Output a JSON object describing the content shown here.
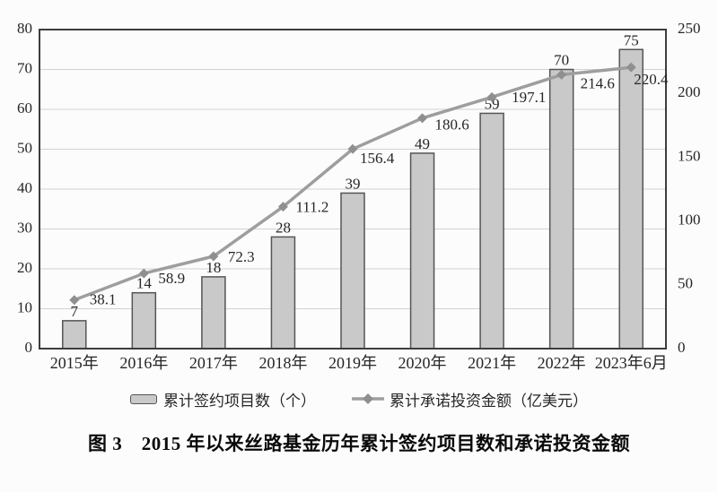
{
  "caption": "图 3　2015 年以来丝路基金历年累计签约项目数和承诺投资金额",
  "chart_data": {
    "type": "bar+line combo",
    "categories": [
      "2015年",
      "2016年",
      "2017年",
      "2018年",
      "2019年",
      "2020年",
      "2021年",
      "2022年",
      "2023年6月"
    ],
    "series": [
      {
        "name": "累计签约项目数（个）",
        "type": "bar",
        "axis": "left",
        "values": [
          7,
          14,
          18,
          28,
          39,
          49,
          59,
          70,
          75
        ]
      },
      {
        "name": "累计承诺投资金额（亿美元）",
        "type": "line",
        "axis": "right",
        "values": [
          38.1,
          58.9,
          72.3,
          111.2,
          156.4,
          180.6,
          197.1,
          214.6,
          220.4
        ]
      }
    ],
    "left_axis": {
      "min": 0,
      "max": 80,
      "step": 10,
      "ticks": [
        "0",
        "10",
        "20",
        "30",
        "40",
        "50",
        "60",
        "70",
        "80"
      ]
    },
    "right_axis": {
      "min": 0,
      "max": 250,
      "step": 50,
      "ticks": [
        "0",
        "50",
        "100",
        "150",
        "200",
        "250"
      ]
    },
    "grid": "horizontal gridlines every 10 left-axis units",
    "legend_position": "bottom",
    "colors": {
      "bar_fill": "#c9c9c9",
      "bar_border": "#555555",
      "line": "#9e9e9e",
      "marker": "#8f8f8f",
      "grid": "#d2d2d2",
      "axis_border": "#3d3d3d",
      "text": "#262626",
      "background": "#fcfcfc"
    }
  }
}
